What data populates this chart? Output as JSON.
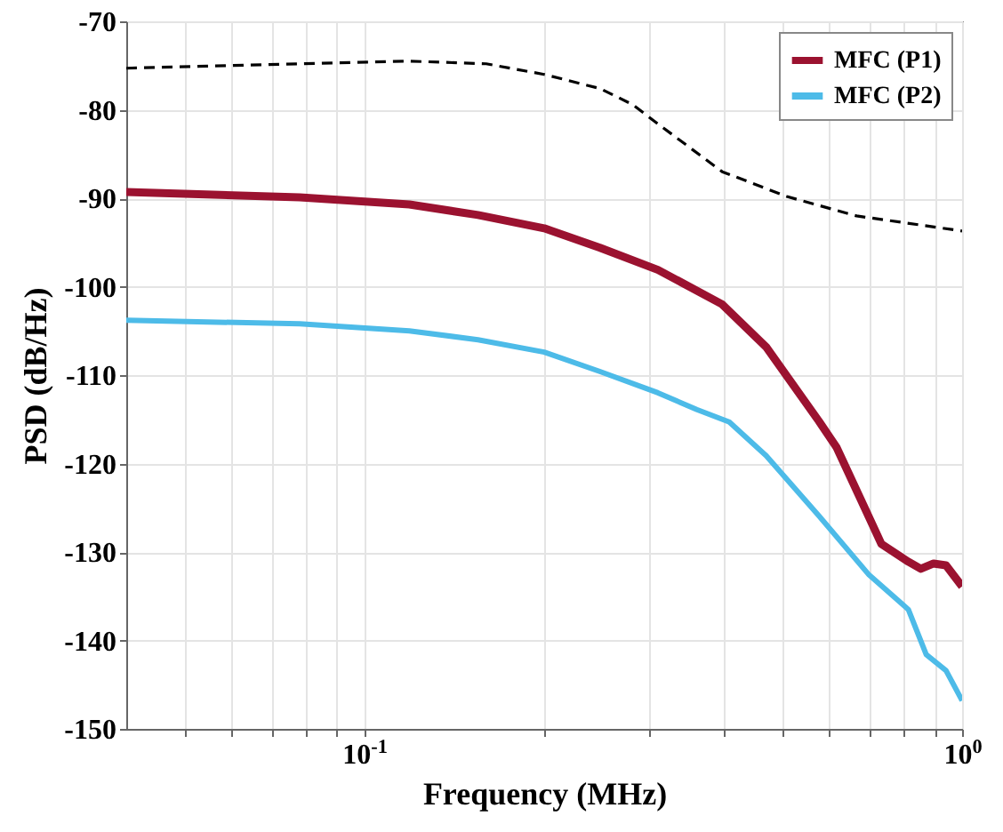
{
  "chart_data": {
    "type": "line",
    "xlabel": "Frequency (MHz)",
    "ylabel": "PSD (dB/Hz)",
    "log": "x",
    "grid": true,
    "legend": "top right",
    "xlim": [
      0.04,
      1
    ],
    "ylim": [
      -150,
      -70
    ],
    "xticks": [
      {
        "value": 0.05,
        "label": null
      },
      {
        "value": 0.06,
        "label": null
      },
      {
        "value": 0.07,
        "label": null
      },
      {
        "value": 0.08,
        "label": null
      },
      {
        "value": 0.09,
        "label": null
      },
      {
        "value": 0.1,
        "label": "10$^{-1}$"
      },
      {
        "value": 0.2,
        "label": null
      },
      {
        "value": 0.3,
        "label": null
      },
      {
        "value": 0.4,
        "label": null
      },
      {
        "value": 0.5,
        "label": null
      },
      {
        "value": 0.6,
        "label": null
      },
      {
        "value": 0.7,
        "label": null
      },
      {
        "value": 0.8,
        "label": null
      },
      {
        "value": 0.9,
        "label": null
      },
      {
        "value": 1,
        "label": "10$^{0}$"
      }
    ],
    "yticks": [
      -150,
      -140,
      -130,
      -120,
      -110,
      -100,
      -90,
      -80,
      -70
    ],
    "series": [
      {
        "name": "MFC (P1)",
        "color": "#9b1230",
        "line_style": "solid",
        "x": [
          0.04,
          0.078,
          0.119,
          0.155,
          0.2,
          0.248,
          0.31,
          0.397,
          0.47,
          0.576,
          0.617,
          0.699,
          0.733,
          0.813,
          0.853,
          0.896,
          0.94,
          1
        ],
        "values": [
          -89.3,
          -89.9,
          -90.7,
          -91.9,
          -93.4,
          -95.6,
          -98.1,
          -102,
          -106.8,
          -115.2,
          -118.2,
          -126.1,
          -129.1,
          -131.1,
          -131.9,
          -131.3,
          -131.5,
          -133.9
        ]
      },
      {
        "name": "MFC (P2)",
        "color": "#4dbbe8",
        "line_style": "solid",
        "x": [
          0.04,
          0.078,
          0.119,
          0.155,
          0.2,
          0.248,
          0.31,
          0.36,
          0.408,
          0.47,
          0.576,
          0.699,
          0.813,
          0.871,
          0.94,
          1
        ],
        "values": [
          -103.8,
          -104.2,
          -105,
          -106,
          -107.4,
          -109.6,
          -112,
          -113.9,
          -115.3,
          -119.1,
          -125.9,
          -132.6,
          -136.5,
          -141.6,
          -143.4,
          -146.8
        ]
      },
      {
        "color": "#000000",
        "line_style": "dashed",
        "x": [
          0.04,
          0.078,
          0.119,
          0.16,
          0.2,
          0.248,
          0.281,
          0.31,
          0.397,
          0.509,
          0.666,
          1
        ],
        "values": [
          -75.3,
          -74.8,
          -74.5,
          -74.8,
          -76,
          -77.6,
          -79.4,
          -81.6,
          -87,
          -89.8,
          -92,
          -93.7
        ]
      }
    ]
  }
}
